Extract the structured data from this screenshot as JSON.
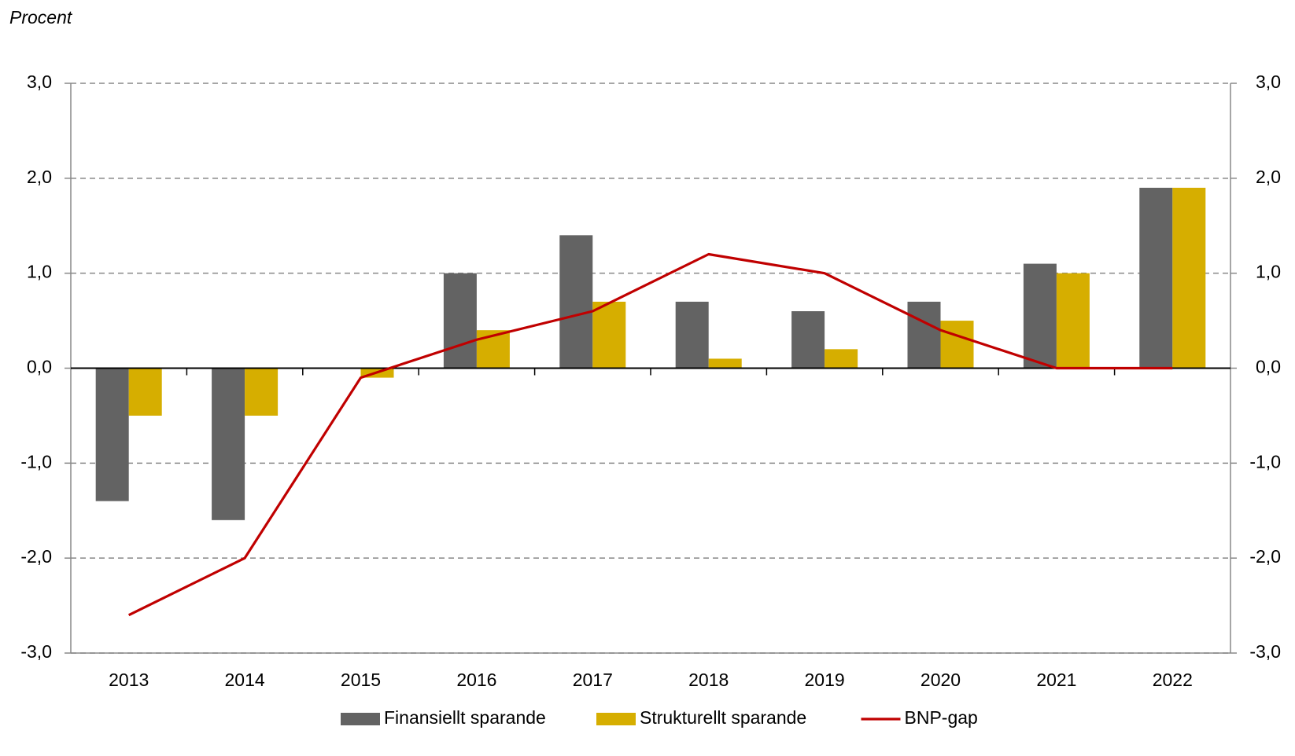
{
  "chart_data": {
    "type": "bar_line",
    "y_label": "Procent",
    "categories": [
      "2013",
      "2014",
      "2015",
      "2016",
      "2017",
      "2018",
      "2019",
      "2020",
      "2021",
      "2022"
    ],
    "series": [
      {
        "name": "Finansiellt sparande",
        "type": "bar",
        "color": "#636363",
        "values": [
          -1.4,
          -1.6,
          0,
          1.0,
          1.4,
          0.7,
          0.6,
          0.7,
          1.1,
          1.9
        ]
      },
      {
        "name": "Strukturellt sparande",
        "type": "bar",
        "color": "#d6ae00",
        "values": [
          -0.5,
          -0.5,
          -0.1,
          0.4,
          0.7,
          0.1,
          0.2,
          0.5,
          1.0,
          1.9
        ]
      },
      {
        "name": "BNP-gap",
        "type": "line",
        "color": "#c00000",
        "values": [
          -2.6,
          -2.0,
          -0.1,
          0.3,
          0.6,
          1.2,
          1.0,
          0.4,
          0.0,
          0.0
        ]
      }
    ],
    "ylim": [
      -3,
      3
    ],
    "yticks": [
      {
        "value": 3,
        "label": "3,0"
      },
      {
        "value": 2,
        "label": "2,0"
      },
      {
        "value": 1,
        "label": "1,0"
      },
      {
        "value": 0,
        "label": "0,0"
      },
      {
        "value": -1,
        "label": "-1,0"
      },
      {
        "value": -2,
        "label": "-2,0"
      },
      {
        "value": -3,
        "label": "-3,0"
      }
    ],
    "y2lim": [
      -3,
      3
    ],
    "y2ticks": [
      {
        "value": 3,
        "label": "3,0"
      },
      {
        "value": 2,
        "label": "2,0"
      },
      {
        "value": 1,
        "label": "1,0"
      },
      {
        "value": 0,
        "label": "0,0"
      },
      {
        "value": -1,
        "label": "-1,0"
      },
      {
        "value": -2,
        "label": "-2,0"
      },
      {
        "value": -3,
        "label": "-3,0"
      }
    ],
    "grid": true,
    "legend": "bottom"
  }
}
